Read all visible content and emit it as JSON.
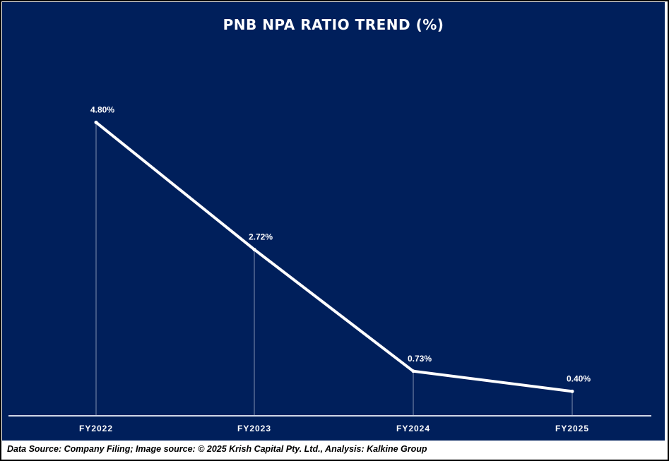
{
  "chart_data": {
    "type": "line",
    "title": "PNB NPA RATIO TREND (%)",
    "categories": [
      "FY2022",
      "FY2023",
      "FY2024",
      "FY2025"
    ],
    "values": [
      4.8,
      2.72,
      0.73,
      0.4
    ],
    "data_labels": [
      "4.80%",
      "2.72%",
      "0.73%",
      "0.40%"
    ],
    "xlabel": "",
    "ylabel": "",
    "ylim": [
      0,
      4.8
    ],
    "grid": false,
    "colors": {
      "background": "#001f5b",
      "line": "#ffffff"
    }
  },
  "caption": "Data Source: Company Filing; Image source: © 2025 Krish Capital Pty. Ltd., Analysis: Kalkine Group"
}
